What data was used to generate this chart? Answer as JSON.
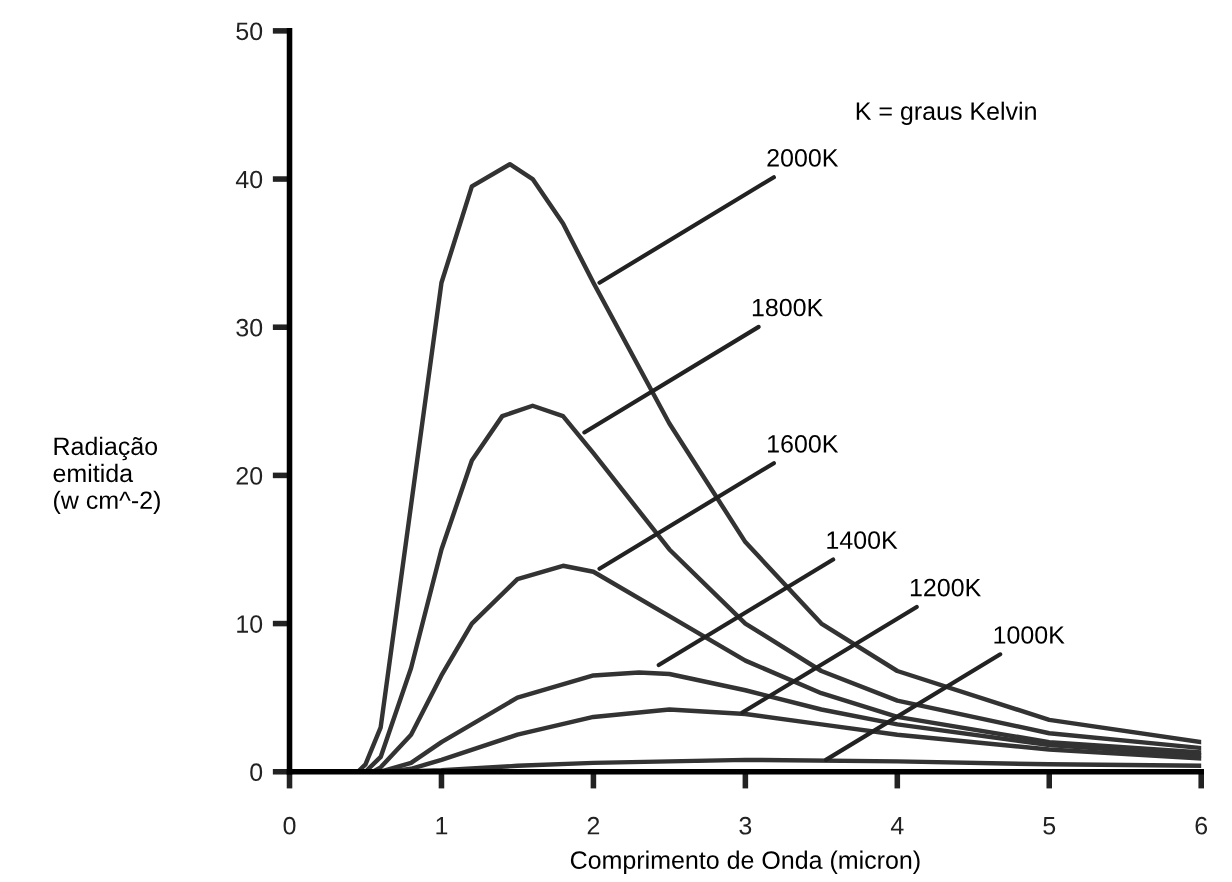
{
  "chart_data": {
    "type": "line",
    "xlabel": "Comprimento de Onda (micron)",
    "ylabel": "Radiação\nemitida\n(w cm^-2)",
    "xlim": [
      0,
      6
    ],
    "xticks": [
      0,
      1,
      2,
      3,
      4,
      5,
      6
    ],
    "ylim": [
      0,
      50
    ],
    "yticks": [
      0,
      10,
      20,
      30,
      40,
      50
    ],
    "grid": false,
    "marker": "none",
    "line_style": "solid",
    "series": [
      {
        "color": "#333333",
        "x": [
          0.45,
          0.5,
          0.6,
          0.8,
          1.0,
          1.2,
          1.45,
          1.6,
          1.8,
          2.0,
          2.5,
          3.0,
          3.5,
          4.0,
          5.0,
          6.0
        ],
        "values": [
          0,
          0.5,
          3,
          18,
          33,
          39.5,
          41,
          40,
          37,
          33,
          23.5,
          15.5,
          10,
          6.8,
          3.5,
          2.0
        ]
      },
      {
        "color": "#333333",
        "x": [
          0.5,
          0.6,
          0.8,
          1.0,
          1.2,
          1.4,
          1.6,
          1.8,
          2.0,
          2.5,
          3.0,
          3.5,
          4.0,
          5.0,
          6.0
        ],
        "values": [
          0,
          1,
          7,
          15,
          21,
          24,
          24.7,
          24,
          21.5,
          15,
          10,
          6.8,
          4.8,
          2.6,
          1.6
        ]
      },
      {
        "color": "#333333",
        "x": [
          0.55,
          0.6,
          0.8,
          1.0,
          1.2,
          1.5,
          1.8,
          2.0,
          2.5,
          3.0,
          3.5,
          4.0,
          5.0,
          6.0
        ],
        "values": [
          0,
          0.3,
          2.5,
          6.5,
          10,
          13,
          13.9,
          13.5,
          10.5,
          7.5,
          5.3,
          3.7,
          2.0,
          1.3
        ]
      },
      {
        "color": "#333333",
        "x": [
          0.6,
          0.8,
          1.0,
          1.5,
          2.0,
          2.3,
          2.5,
          3.0,
          3.5,
          4.0,
          5.0,
          6.0
        ],
        "values": [
          0,
          0.6,
          2,
          5,
          6.5,
          6.7,
          6.6,
          5.5,
          4.2,
          3.2,
          1.8,
          1.1
        ]
      },
      {
        "color": "#333333",
        "x": [
          0.65,
          0.8,
          1.0,
          1.5,
          2.0,
          2.5,
          3.0,
          3.5,
          4.0,
          5.0,
          6.0
        ],
        "values": [
          0,
          0.2,
          0.8,
          2.5,
          3.7,
          4.2,
          3.9,
          3.2,
          2.5,
          1.5,
          0.9
        ]
      },
      {
        "color": "#333333",
        "x": [
          0.7,
          1.0,
          1.5,
          2.0,
          3.0,
          4.0,
          5.0,
          6.0
        ],
        "values": [
          0,
          0.1,
          0.4,
          0.6,
          0.8,
          0.7,
          0.5,
          0.4
        ]
      }
    ],
    "annotations": [
      {
        "text": "2000K",
        "x": 2.04,
        "y": 33
      },
      {
        "text": "1800K",
        "x": 1.94,
        "y": 22.9
      },
      {
        "text": "1600K",
        "x": 2.04,
        "y": 13.7
      },
      {
        "text": "1400K",
        "x": 2.43,
        "y": 7.2
      },
      {
        "text": "1200K",
        "x": 2.98,
        "y": 4.0
      },
      {
        "text": "1000K",
        "x": 3.53,
        "y": 0.8
      },
      "K = graus Kelvin"
    ]
  }
}
